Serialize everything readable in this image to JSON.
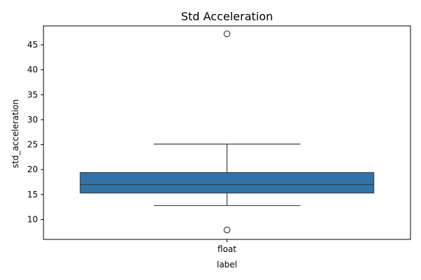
{
  "chart_data": {
    "type": "box",
    "title": "Std Acceleration",
    "xlabel": "label",
    "ylabel": "std_acceleration",
    "categories": [
      "float"
    ],
    "ylim": [
      6.0,
      48.8
    ],
    "yticks": [
      10,
      15,
      20,
      25,
      30,
      35,
      40,
      45
    ],
    "grid": false,
    "legend": "none",
    "boxes": [
      {
        "category": "float",
        "whisker_low": 12.8,
        "q1": 15.3,
        "median": 17.0,
        "q3": 19.4,
        "whisker_high": 25.1,
        "outliers": [
          47.2,
          7.9
        ]
      }
    ],
    "colors": {
      "box_fill": "#2f73a9",
      "line": "#3f3f3f",
      "axis": "#000000"
    }
  }
}
